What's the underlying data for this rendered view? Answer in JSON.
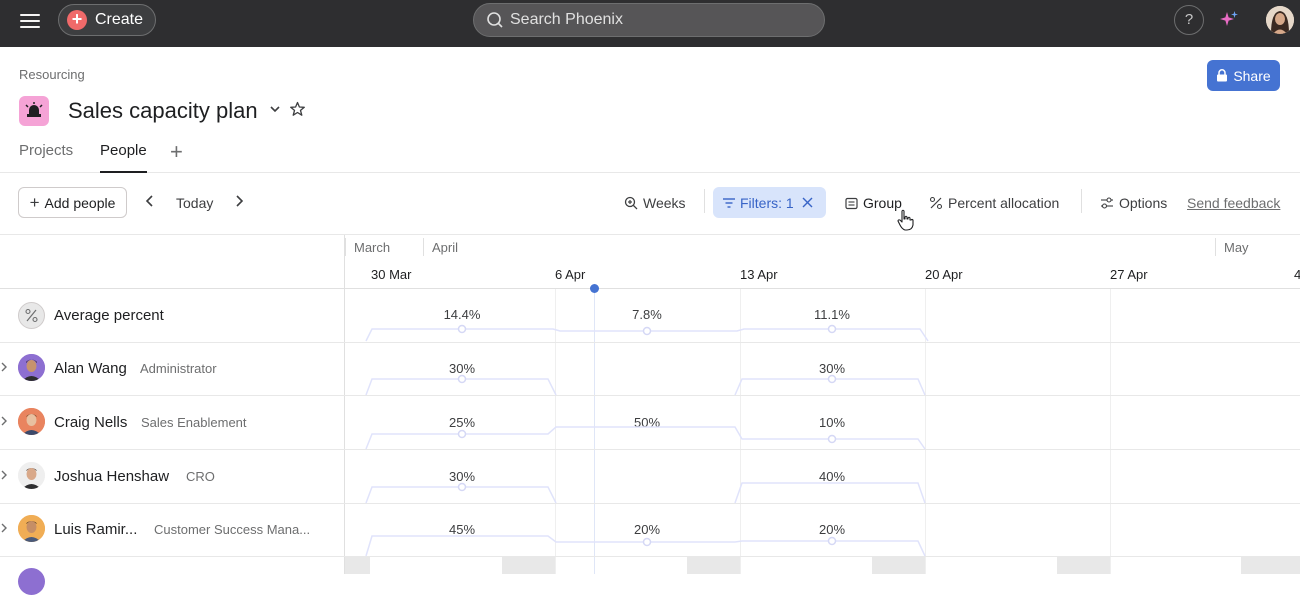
{
  "topbar": {
    "create_label": "Create",
    "search_placeholder": "Search Phoenix",
    "help_label": "?"
  },
  "header": {
    "breadcrumb": "Resourcing",
    "title": "Sales capacity plan",
    "share_label": "Share",
    "tabs": [
      {
        "label": "Projects",
        "active": false
      },
      {
        "label": "People",
        "active": true
      }
    ],
    "add_tab": "+"
  },
  "toolbar": {
    "add_people": "Add people",
    "today": "Today",
    "weeks": "Weeks",
    "filters": "Filters: 1",
    "group": "Group",
    "percent_allocation": "Percent allocation",
    "options": "Options",
    "send_feedback": "Send feedback"
  },
  "timeline": {
    "months": [
      "March",
      "April",
      "May"
    ],
    "weeks": [
      "30 Mar",
      "6 Apr",
      "13 Apr",
      "20 Apr",
      "27 Apr",
      "4"
    ]
  },
  "rows": [
    {
      "name": "Average percent",
      "role": "",
      "values": [
        "14.4%",
        "7.8%",
        "11.1%"
      ]
    },
    {
      "name": "Alan Wang",
      "role": "Administrator",
      "values": [
        "30%",
        "",
        "30%"
      ]
    },
    {
      "name": "Craig Nells",
      "role": "Sales Enablement",
      "values": [
        "25%",
        "50%",
        "10%"
      ]
    },
    {
      "name": "Joshua Henshaw",
      "role": "CRO",
      "values": [
        "30%",
        "",
        "40%"
      ]
    },
    {
      "name": "Luis Ramir...",
      "role": "Customer Success Mana...",
      "values": [
        "45%",
        "20%",
        "20%"
      ]
    }
  ],
  "colors": {
    "topbar": "#2e2e30",
    "accent": "#4573d2",
    "create": "#f06a6a",
    "project_icon": "#f5a3d6",
    "filter_bg": "#d8e4fb"
  }
}
